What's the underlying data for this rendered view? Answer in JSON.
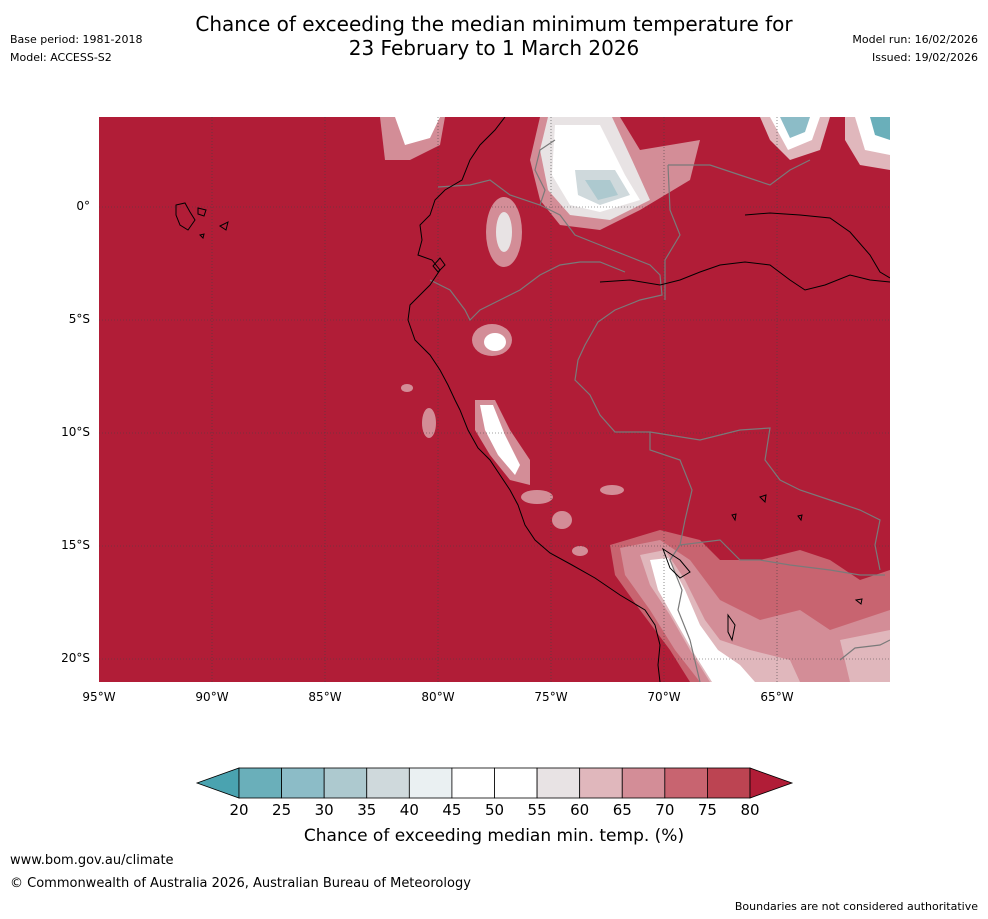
{
  "title": {
    "line1": "Chance of exceeding the median minimum temperature for",
    "line2": "23 February to 1 March 2026"
  },
  "meta_left": {
    "base_period": "Base period: 1981-2018",
    "model": "Model: ACCESS-S2"
  },
  "meta_right": {
    "model_run": "Model run: 16/02/2026",
    "issued": "Issued: 19/02/2026"
  },
  "map": {
    "lat_labels": [
      "0°",
      "5°S",
      "10°S",
      "15°S",
      "20°S"
    ],
    "lon_labels": [
      "95°W",
      "90°W",
      "85°W",
      "80°W",
      "75°W",
      "70°W",
      "65°W"
    ],
    "background_color": "#b11d37"
  },
  "colorbar": {
    "ticks": [
      "20",
      "25",
      "30",
      "35",
      "40",
      "45",
      "50",
      "55",
      "60",
      "65",
      "70",
      "75",
      "80"
    ],
    "colors": [
      "#4aa3b0",
      "#6aafba",
      "#8cbcc7",
      "#adc9cf",
      "#cfd9dc",
      "#eaf0f2",
      "#ffffff",
      "#ffffff",
      "#e8e3e4",
      "#e0b7bc",
      "#d38d97",
      "#c86470",
      "#bc4452",
      "#b11d37"
    ],
    "title": "Chance of exceeding median min. temp. (%)"
  },
  "footer": {
    "url": "www.bom.gov.au/climate",
    "copyright": "© Commonwealth of Australia 2026, Australian Bureau of Meteorology",
    "note": "Boundaries are not considered authoritative"
  }
}
